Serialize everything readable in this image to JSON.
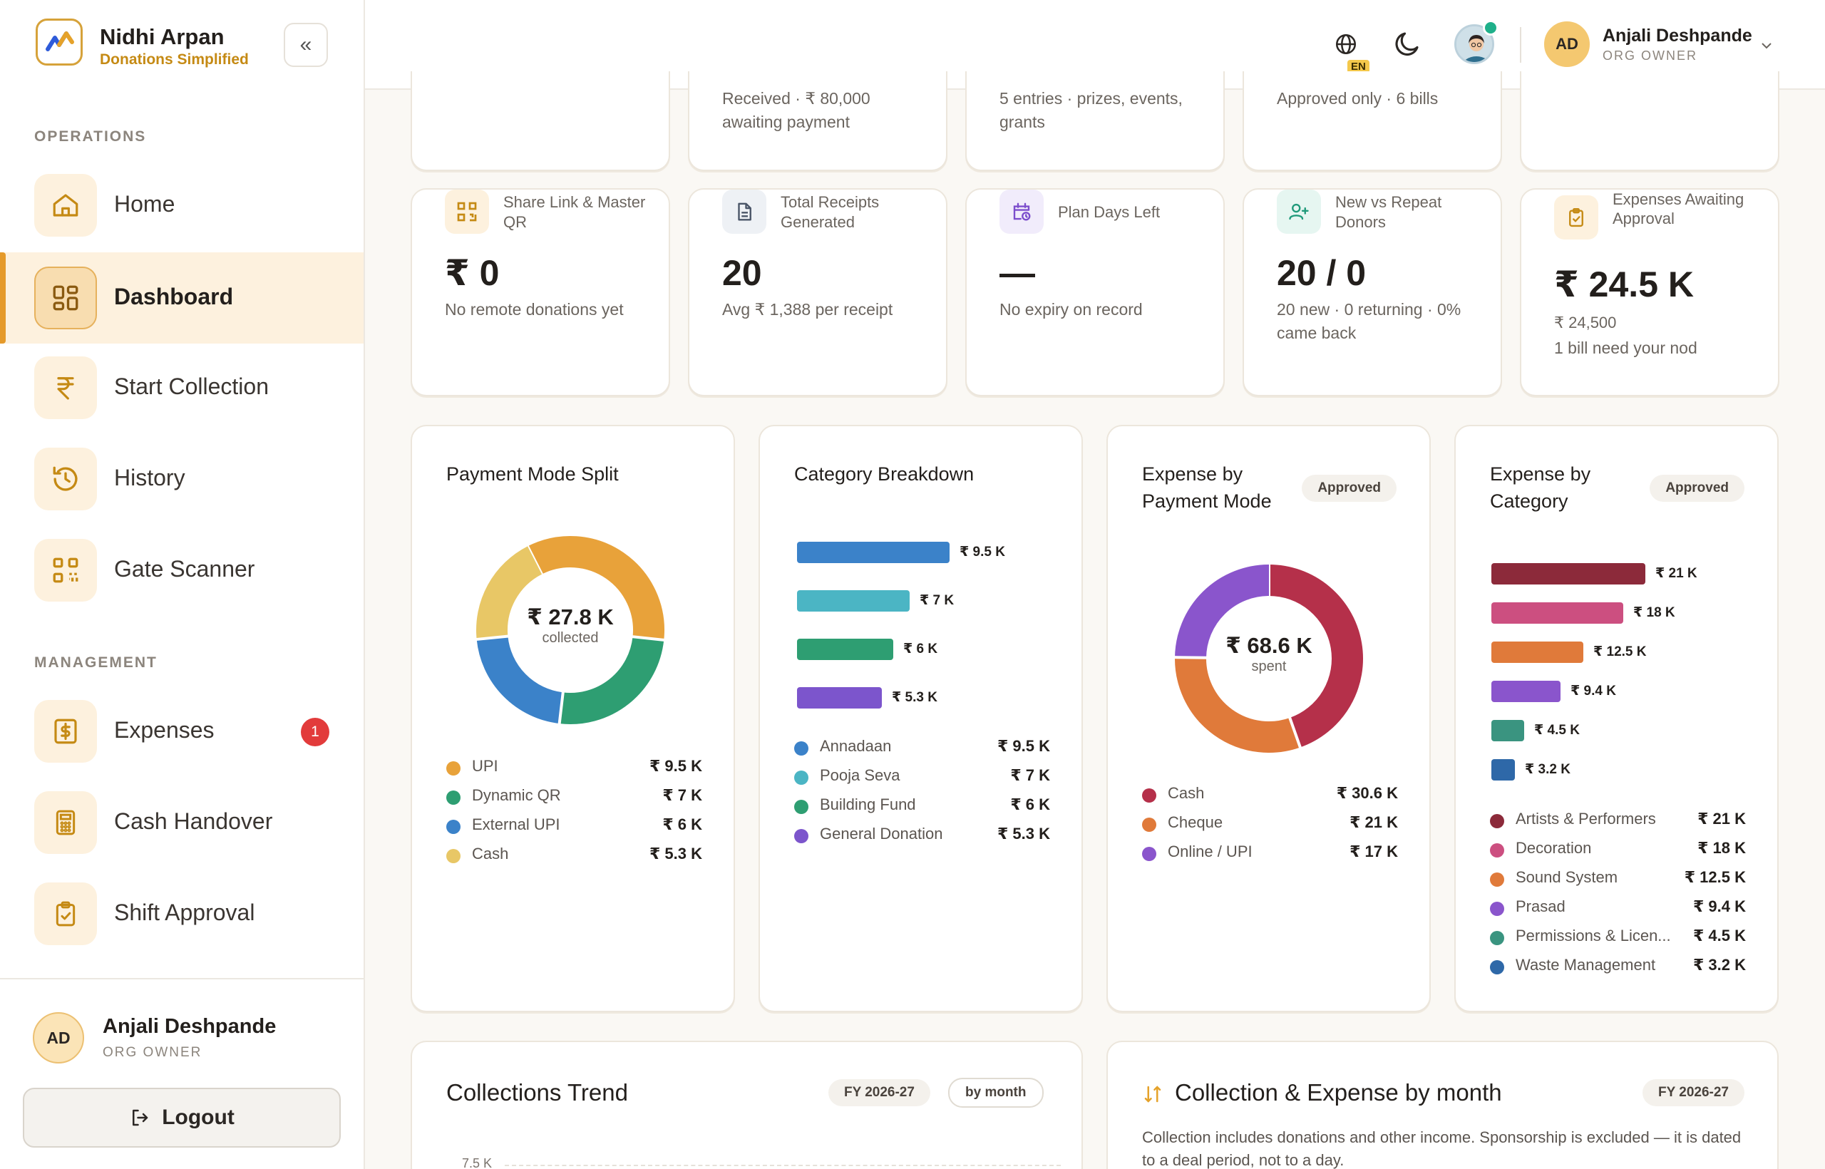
{
  "brand": {
    "name": "Nidhi Arpan",
    "tagline": "Donations Simplified"
  },
  "sidebar": {
    "sections": {
      "operations": "OPERATIONS",
      "management": "MANAGEMENT"
    },
    "items": [
      {
        "label": "Home",
        "icon": "home-icon"
      },
      {
        "label": "Dashboard",
        "icon": "dashboard-grid-icon",
        "active": true
      },
      {
        "label": "Start Collection",
        "icon": "rupee-icon"
      },
      {
        "label": "History",
        "icon": "history-icon"
      },
      {
        "label": "Gate Scanner",
        "icon": "qr-scan-icon"
      },
      {
        "label": "Expenses",
        "icon": "bill-icon",
        "badge": "1"
      },
      {
        "label": "Cash Handover",
        "icon": "calculator-icon"
      },
      {
        "label": "Shift Approval",
        "icon": "clipboard-check-icon"
      }
    ],
    "user": {
      "initials": "AD",
      "name": "Anjali Deshpande",
      "role": "ORG OWNER"
    },
    "logout_label": "Logout"
  },
  "topbar": {
    "lang": "EN",
    "user": {
      "initials": "AD",
      "name": "Anjali Deshpande",
      "role": "ORG OWNER"
    }
  },
  "top_row_partial": [
    {
      "sub": ""
    },
    {
      "sub": "Received · ₹ 80,000 awaiting payment"
    },
    {
      "sub": "5 entries · prizes, events, grants"
    },
    {
      "sub": "Approved only · 6 bills"
    },
    {
      "sub": ""
    }
  ],
  "kpis": [
    {
      "label": "Share Link & Master QR",
      "value": "₹ 0",
      "sub": "No remote donations yet",
      "icon": "qr-icon",
      "icon_bg": "#fdf1de",
      "icon_color": "#c58a14"
    },
    {
      "label": "Total Receipts Generated",
      "value": "20",
      "sub": "Avg ₹ 1,388 per receipt",
      "icon": "document-icon",
      "icon_bg": "#eef1f5",
      "icon_color": "#4a5568"
    },
    {
      "label": "Plan Days Left",
      "value": "—",
      "sub": "No expiry on record",
      "icon": "calendar-clock-icon",
      "icon_bg": "#f1ecfb",
      "icon_color": "#7c4dcc"
    },
    {
      "label": "New vs Repeat Donors",
      "value": "20 / 0",
      "sub": "20 new · 0 returning · 0% came back",
      "icon": "user-plus-icon",
      "icon_bg": "#e6f6f1",
      "icon_color": "#1f9a7a"
    },
    {
      "label": "Expenses Awaiting Approval",
      "value": "₹ 24.5 K",
      "sub1": "₹ 24,500",
      "sub2": "1 bill need your nod",
      "icon": "clipboard-check-icon",
      "icon_bg": "#fdf1de",
      "icon_color": "#c58a14"
    }
  ],
  "charts": {
    "payment_mode": {
      "title": "Payment Mode Split",
      "center_value": "₹ 27.8 K",
      "center_label": "collected",
      "legend": [
        {
          "name": "UPI",
          "value": "₹ 9.5 K",
          "color": "#e8a23a"
        },
        {
          "name": "Dynamic QR",
          "value": "₹ 7 K",
          "color": "#2e9e72"
        },
        {
          "name": "External UPI",
          "value": "₹ 6 K",
          "color": "#3b82c9"
        },
        {
          "name": "Cash",
          "value": "₹ 5.3 K",
          "color": "#e8c766"
        }
      ]
    },
    "category": {
      "title": "Category Breakdown",
      "legend": [
        {
          "name": "Annadaan",
          "value": "₹ 9.5 K",
          "color": "#3b82c9"
        },
        {
          "name": "Pooja Seva",
          "value": "₹ 7 K",
          "color": "#4bb5c4"
        },
        {
          "name": "Building Fund",
          "value": "₹ 6 K",
          "color": "#2e9e72"
        },
        {
          "name": "General Donation",
          "value": "₹ 5.3 K",
          "color": "#7c55cc"
        }
      ]
    },
    "expense_payment": {
      "title": "Expense by Payment Mode",
      "badge": "Approved",
      "center_value": "₹ 68.6 K",
      "center_label": "spent",
      "legend": [
        {
          "name": "Cash",
          "value": "₹ 30.6 K",
          "color": "#b5304a"
        },
        {
          "name": "Cheque",
          "value": "₹ 21 K",
          "color": "#e07a3a"
        },
        {
          "name": "Online / UPI",
          "value": "₹ 17 K",
          "color": "#8a55cc"
        }
      ]
    },
    "expense_category": {
      "title": "Expense by Category",
      "badge": "Approved",
      "legend": [
        {
          "name": "Artists & Performers",
          "value": "₹ 21 K",
          "color": "#8c2a3a"
        },
        {
          "name": "Decoration",
          "value": "₹ 18 K",
          "color": "#cc4f80"
        },
        {
          "name": "Sound System",
          "value": "₹ 12.5 K",
          "color": "#e07a3a"
        },
        {
          "name": "Prasad",
          "value": "₹ 9.4 K",
          "color": "#8a55cc"
        },
        {
          "name": "Permissions & Licen...",
          "value": "₹ 4.5 K",
          "color": "#3a9480"
        },
        {
          "name": "Waste Management",
          "value": "₹ 3.2 K",
          "color": "#2e68a8"
        }
      ]
    }
  },
  "chart_data": [
    {
      "type": "pie",
      "title": "Payment Mode Split",
      "categories": [
        "UPI",
        "Dynamic QR",
        "External UPI",
        "Cash"
      ],
      "values": [
        9.5,
        7,
        6,
        5.3
      ]
    },
    {
      "type": "bar",
      "title": "Category Breakdown",
      "categories": [
        "Annadaan",
        "Pooja Seva",
        "Building Fund",
        "General Donation"
      ],
      "values": [
        9.5,
        7,
        6,
        5.3
      ]
    },
    {
      "type": "pie",
      "title": "Expense by Payment Mode",
      "categories": [
        "Cash",
        "Cheque",
        "Online / UPI"
      ],
      "values": [
        30.6,
        21,
        17
      ]
    },
    {
      "type": "bar",
      "title": "Expense by Category",
      "categories": [
        "Artists & Performers",
        "Decoration",
        "Sound System",
        "Prasad",
        "Permissions & Licen...",
        "Waste Management"
      ],
      "values": [
        21,
        18,
        12.5,
        9.4,
        4.5,
        3.2
      ]
    }
  ],
  "bottom": {
    "trend": {
      "title": "Collections Trend",
      "fy": "FY 2026-27",
      "by": "by month",
      "tick": "7.5 K"
    },
    "coll_exp": {
      "title": "Collection & Expense by month",
      "fy": "FY 2026-27",
      "desc": "Collection includes donations and other income. Sponsorship is excluded — it is dated to a deal period, not to a day."
    }
  }
}
